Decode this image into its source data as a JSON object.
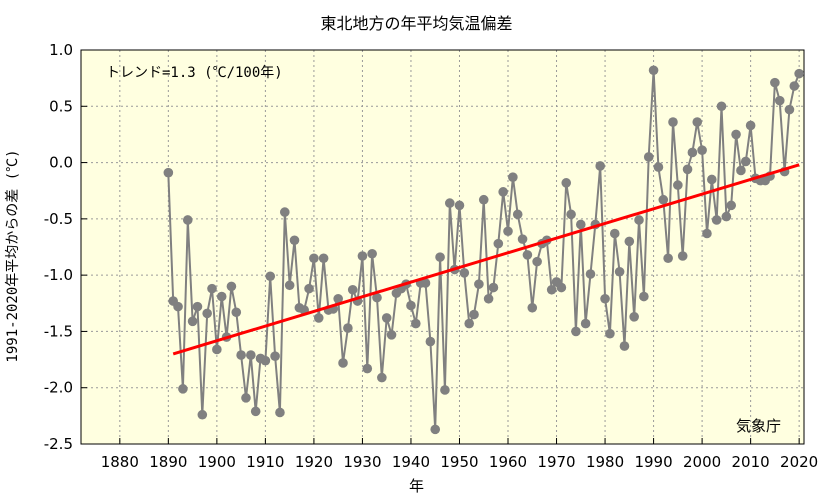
{
  "chart_data": {
    "type": "line",
    "title": "東北地方の年平均気温偏差",
    "xlabel": "年",
    "ylabel": "1991-2020年平均からの差 (℃)",
    "trend_label": "トレンド=1.3 (℃/100年)",
    "source_label": "気象庁",
    "xlim": [
      1872,
      2021
    ],
    "ylim": [
      -2.5,
      1.0
    ],
    "x_ticks": [
      1880,
      1890,
      1900,
      1910,
      1920,
      1930,
      1940,
      1950,
      1960,
      1970,
      1980,
      1990,
      2000,
      2010,
      2020
    ],
    "y_ticks": [
      -2.5,
      -2.0,
      -1.5,
      -1.0,
      -0.5,
      0.0,
      0.5,
      1.0
    ],
    "y_tick_labels": [
      "-2.5",
      "-2.0",
      "-1.5",
      "-1.0",
      "-0.5",
      "0.0",
      "0.5",
      "1.0"
    ],
    "grid": true,
    "colors": {
      "background": "#ffffe0",
      "series": "#808080",
      "trend": "#ff0000"
    },
    "series": [
      {
        "x": [
          1890,
          1891,
          1892,
          1893,
          1894,
          1895,
          1896,
          1897,
          1898,
          1899,
          1900,
          1901,
          1902,
          1903,
          1904,
          1905,
          1906,
          1907,
          1908,
          1909,
          1910,
          1911,
          1912,
          1913,
          1914,
          1915,
          1916,
          1917,
          1918,
          1919,
          1920,
          1921,
          1922,
          1923,
          1924,
          1925,
          1926,
          1927,
          1928,
          1929,
          1930,
          1931,
          1932,
          1933,
          1934,
          1935,
          1936,
          1937,
          1938,
          1939,
          1940,
          1941,
          1942,
          1943,
          1944,
          1945,
          1946,
          1947,
          1948,
          1949,
          1950,
          1951,
          1952,
          1953,
          1954,
          1955,
          1956,
          1957,
          1958,
          1959,
          1960,
          1961,
          1962,
          1963,
          1964,
          1965,
          1966,
          1967,
          1968,
          1969,
          1970,
          1971,
          1972,
          1973,
          1974,
          1975,
          1976,
          1977,
          1978,
          1979,
          1980,
          1981,
          1982,
          1983,
          1984,
          1985,
          1986,
          1987,
          1988,
          1989,
          1990,
          1991,
          1992,
          1993,
          1994,
          1995,
          1996,
          1997,
          1998,
          1999,
          2000,
          2001,
          2002,
          2003,
          2004,
          2005,
          2006,
          2007,
          2008,
          2009,
          2010,
          2011,
          2012,
          2013,
          2014,
          2015,
          2016,
          2017,
          2018,
          2019,
          2020
        ],
        "values": [
          -0.09,
          -1.23,
          -1.28,
          -2.01,
          -0.51,
          -1.41,
          -1.28,
          -2.24,
          -1.34,
          -1.12,
          -1.66,
          -1.19,
          -1.55,
          -1.1,
          -1.33,
          -1.71,
          -2.09,
          -1.71,
          -2.21,
          -1.74,
          -1.76,
          -1.01,
          -1.72,
          -2.22,
          -0.44,
          -1.09,
          -0.69,
          -1.29,
          -1.31,
          -1.12,
          -0.85,
          -1.38,
          -0.85,
          -1.31,
          -1.3,
          -1.21,
          -1.78,
          -1.47,
          -1.13,
          -1.23,
          -0.83,
          -1.83,
          -0.81,
          -1.2,
          -1.91,
          -1.38,
          -1.53,
          -1.16,
          -1.12,
          -1.08,
          -1.27,
          -1.43,
          -1.07,
          -1.07,
          -1.59,
          -2.37,
          -0.84,
          -2.02,
          -0.36,
          -0.95,
          -0.38,
          -0.98,
          -1.43,
          -1.35,
          -1.08,
          -0.33,
          -1.21,
          -1.11,
          -0.72,
          -0.26,
          -0.61,
          -0.13,
          -0.46,
          -0.68,
          -0.82,
          -1.29,
          -0.88,
          -0.72,
          -0.69,
          -1.13,
          -1.06,
          -1.11,
          -0.18,
          -0.46,
          -1.5,
          -0.55,
          -1.43,
          -0.99,
          -0.55,
          -0.03,
          -1.21,
          -1.52,
          -0.63,
          -0.97,
          -1.63,
          -0.7,
          -1.37,
          -0.51,
          -1.19,
          0.05,
          0.82,
          -0.04,
          -0.33,
          -0.85,
          0.36,
          -0.2,
          -0.83,
          -0.06,
          0.09,
          0.36,
          0.11,
          -0.63,
          -0.15,
          -0.51,
          0.5,
          -0.48,
          -0.38,
          0.25,
          -0.07,
          0.01,
          0.33,
          -0.14,
          -0.16,
          -0.16,
          -0.12,
          0.71,
          0.55,
          -0.08,
          0.47,
          0.68,
          0.79
        ]
      }
    ],
    "trend": {
      "x": [
        1891,
        2020
      ],
      "values": [
        -1.7,
        -0.02
      ]
    }
  }
}
